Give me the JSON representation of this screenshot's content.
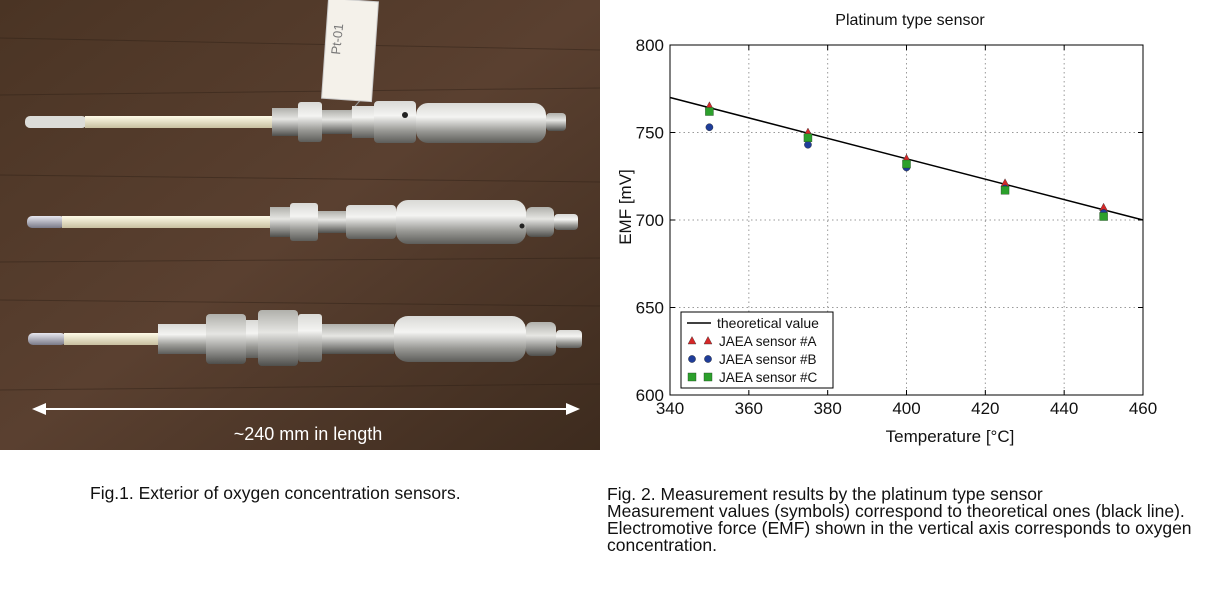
{
  "figure1": {
    "caption": "Fig.1. Exterior of oxygen concentration sensors.",
    "length_label": "~240 mm in length",
    "tag_label": "Pt-01"
  },
  "figure2": {
    "caption_lines": [
      "Fig. 2. Measurement results by the platinum type sensor",
      "Measurement values (symbols) correspond to theoretical ones (black line).",
      "Electromotive force (EMF) shown in the vertical axis corresponds to oxygen",
      "concentration."
    ]
  },
  "chart_data": {
    "type": "scatter",
    "title": "Platinum type sensor",
    "xlabel": "Temperature [°C]",
    "ylabel": "EMF [mV]",
    "xlim": [
      340,
      460
    ],
    "ylim": [
      600,
      800
    ],
    "xticks": [
      340,
      360,
      380,
      400,
      420,
      440,
      460
    ],
    "yticks": [
      600,
      650,
      700,
      750,
      800
    ],
    "grid": true,
    "legend_position": "bottom-left",
    "theoretical_line": {
      "name": "theoretical value",
      "x": [
        340,
        460
      ],
      "y": [
        770,
        700
      ],
      "color": "#000000"
    },
    "series": [
      {
        "name": "JAEA sensor  #A",
        "marker": "triangle",
        "color": "#d62728",
        "x": [
          350,
          375,
          400,
          425,
          450
        ],
        "y": [
          765,
          750,
          735,
          721,
          707
        ]
      },
      {
        "name": "JAEA sensor  #B",
        "marker": "circle",
        "color": "#1f3d99",
        "x": [
          350,
          375,
          400,
          425,
          450
        ],
        "y": [
          753,
          743,
          730,
          718,
          704
        ]
      },
      {
        "name": "JAEA sensor  #C",
        "marker": "square",
        "color": "#2ca02c",
        "x": [
          350,
          375,
          400,
          425,
          450
        ],
        "y": [
          762,
          747,
          732,
          717,
          702
        ]
      }
    ]
  }
}
